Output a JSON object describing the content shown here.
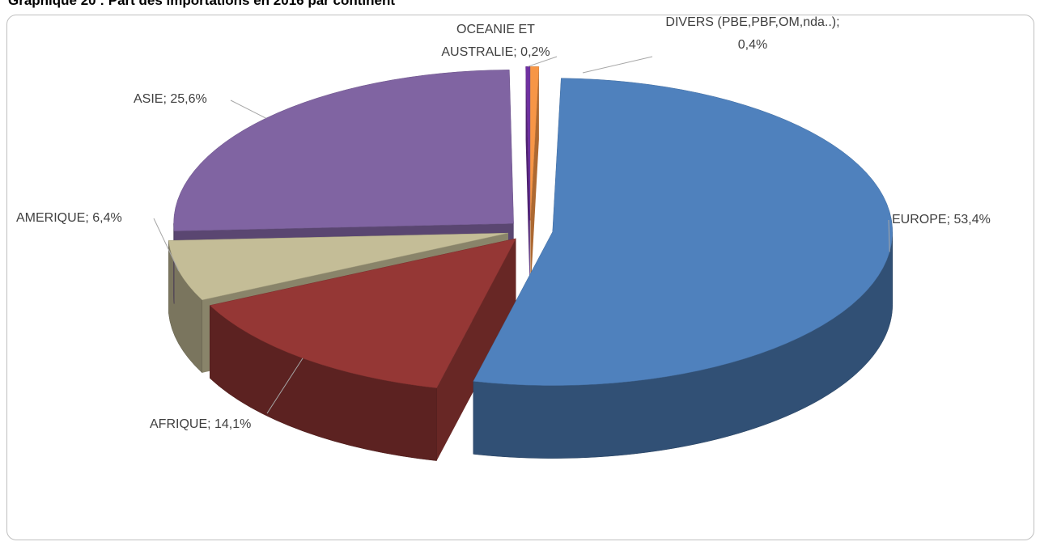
{
  "chart_data": {
    "type": "pie3d",
    "title": "Graphique 20 : Part des importations en 2016 par continent",
    "values": [
      0.4,
      53.4,
      14.1,
      6.4,
      25.6,
      0.2
    ],
    "value_labels": [
      "DIVERS (PBE,PBF,OM,nda..); 0,4%",
      "EUROPE; 53,4%",
      "AFRIQUE; 14,1%",
      "AMERIQUE; 6,4%",
      "ASIE; 25,6%",
      "OCEANIE ET AUSTRALIE; 0,2%"
    ],
    "colors": [
      "#f79646",
      "#4f81bd",
      "#953735",
      "#c4bd97",
      "#8064a2",
      "#7030a0"
    ]
  }
}
